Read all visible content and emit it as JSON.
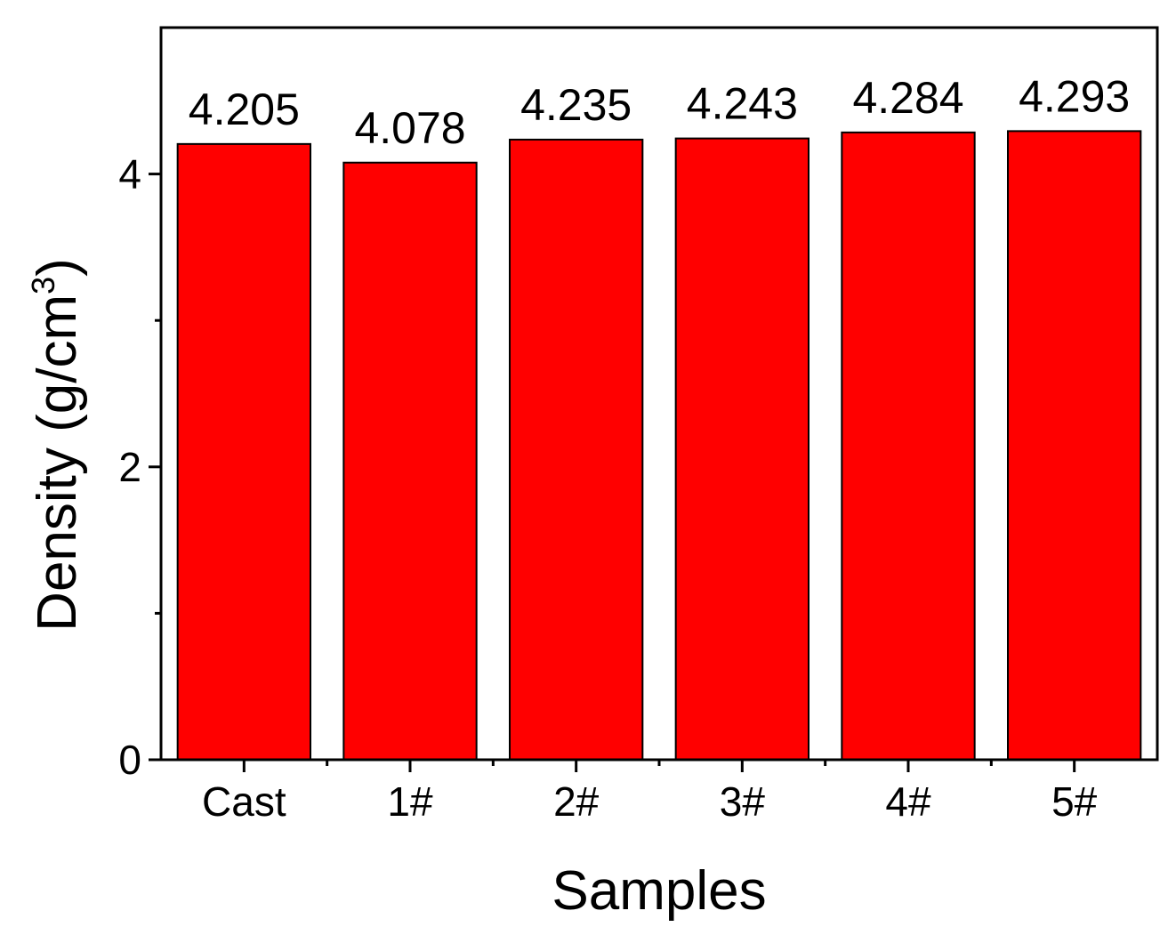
{
  "chart_data": {
    "type": "bar",
    "categories": [
      "Cast",
      "1#",
      "2#",
      "3#",
      "4#",
      "5#"
    ],
    "values": [
      4.205,
      4.078,
      4.235,
      4.243,
      4.284,
      4.293
    ],
    "data_labels": [
      "4.205",
      "4.078",
      "4.235",
      "4.243",
      "4.284",
      "4.293"
    ],
    "xlabel": "Samples",
    "ylabel": "Density (g/cm",
    "ylabel_superscript": "3",
    "ylabel_suffix": ")",
    "ylim": [
      0,
      5
    ],
    "yticks": [
      0,
      2,
      4
    ],
    "ytick_labels": [
      "0",
      "2",
      "4"
    ],
    "yticks_minor": [
      1,
      3
    ],
    "bar_color": "#ff0000",
    "grid": false,
    "legend": "none"
  }
}
